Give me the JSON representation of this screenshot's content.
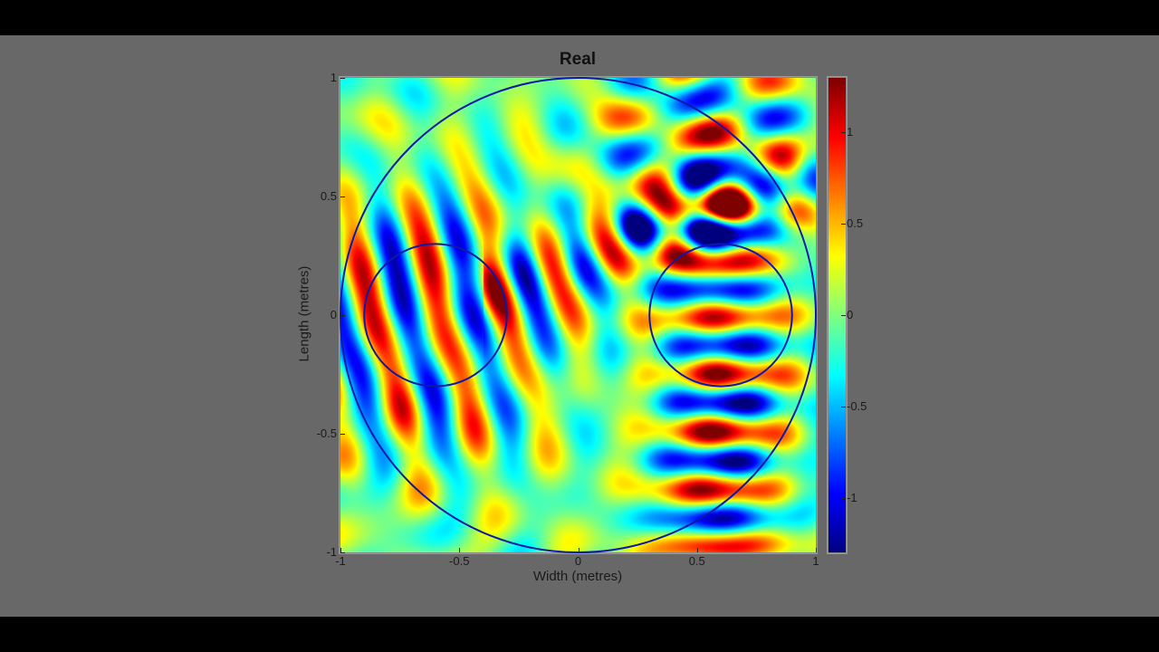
{
  "chart_data": {
    "type": "heatmap",
    "title": "Real",
    "xlabel": "Width (metres)",
    "ylabel": "Length (metres)",
    "xlim": [
      -1,
      1
    ],
    "ylim": [
      -1,
      1
    ],
    "x_ticks": [
      {
        "value": -1,
        "label": "-1"
      },
      {
        "value": -0.5,
        "label": "-0.5"
      },
      {
        "value": 0,
        "label": "0"
      },
      {
        "value": 0.5,
        "label": "0.5"
      },
      {
        "value": 1,
        "label": "1"
      }
    ],
    "y_ticks": [
      {
        "value": 1,
        "label": "1"
      },
      {
        "value": 0.5,
        "label": "0.5"
      },
      {
        "value": 0,
        "label": "0"
      },
      {
        "value": -0.5,
        "label": "-0.5"
      },
      {
        "value": -1,
        "label": "-1"
      }
    ],
    "colorbar": {
      "colormap": "jet",
      "range": [
        -1.3,
        1.3
      ],
      "ticks": [
        {
          "value": 1,
          "label": "1"
        },
        {
          "value": 0.5,
          "label": "0.5"
        },
        {
          "value": 0,
          "label": "0"
        },
        {
          "value": -0.5,
          "label": "-0.5"
        },
        {
          "value": -1,
          "label": "-1"
        }
      ]
    },
    "overlays": [
      {
        "shape": "circle",
        "name": "outer-boundary",
        "cx": 0,
        "cy": 0,
        "r": 1,
        "color": "#0a1aa8"
      },
      {
        "shape": "circle",
        "name": "left-source",
        "cx": -0.6,
        "cy": 0,
        "r": 0.3,
        "color": "#0a1aa8"
      },
      {
        "shape": "circle",
        "name": "right-source",
        "cx": 0.6,
        "cy": 0,
        "r": 0.3,
        "color": "#0a1aa8"
      }
    ],
    "field_description": "Real part of wave field: tilted plane-wave stripes inside left circle, horizontal stripes inside right circle, interference pattern in upper-right, weak speckle elsewhere",
    "waves": {
      "left": {
        "kx": 22,
        "ky": 6,
        "amp": 1.0
      },
      "right": {
        "kx": 0,
        "ky": 26,
        "amp": 1.15
      },
      "upper": {
        "kx": 14,
        "ky": -18,
        "amp": 0.9
      }
    }
  },
  "colors": {
    "background": "#686868",
    "letterbox": "#000000",
    "circle_line": "#0a1aa8"
  }
}
